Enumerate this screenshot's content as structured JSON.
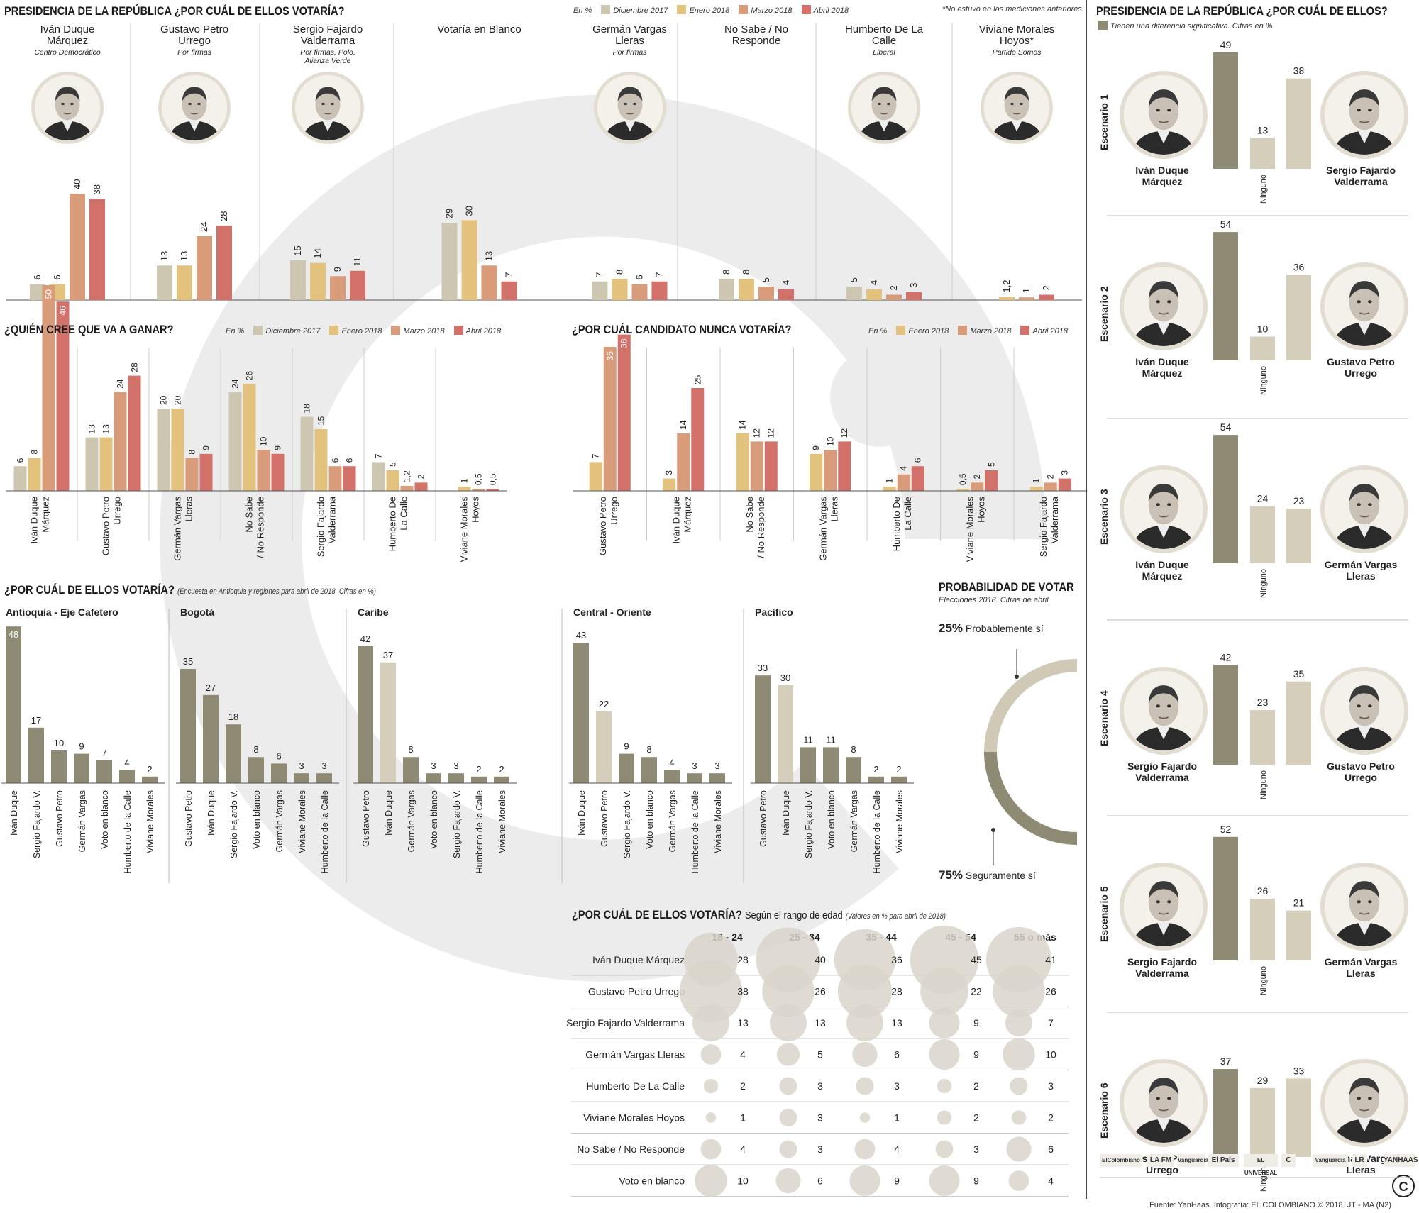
{
  "colors": {
    "dic2017": "#cdc6b0",
    "ene2018": "#e3c27d",
    "mar2018": "#d99c7a",
    "abr2018": "#d2706a",
    "dark": "#8f8a74",
    "light": "#d4ceba"
  },
  "main": {
    "title": "PRESIDENCIA DE LA REPÚBLICA ¿POR CUÁL DE ELLOS VOTARÍA?",
    "legend_unit": "En %",
    "legend": [
      "Diciembre 2017",
      "Enero 2018",
      "Marzo 2018",
      "Abril 2018"
    ],
    "note": "*No estuvo en las mediciones anteriores",
    "candidates": [
      {
        "name": "Iván Duque Márquez",
        "party": "Centro Democrático",
        "face": "duque-photo"
      },
      {
        "name": "Gustavo Petro Urrego",
        "party": "Por firmas",
        "face": "petro-photo"
      },
      {
        "name": "Sergio Fajardo Valderrama",
        "party": "Por firmas, Polo, Alianza Verde",
        "face": "fajardo-photo"
      },
      {
        "name": "Votaría en Blanco",
        "party": "",
        "face": ""
      },
      {
        "name": "Germán Vargas Lleras",
        "party": "Por firmas",
        "face": "vargas-photo"
      },
      {
        "name": "No Sabe / No Responde",
        "party": "",
        "face": ""
      },
      {
        "name": "Humberto De La Calle",
        "party": "Liberal",
        "face": "delacalle-photo"
      },
      {
        "name": "Viviane Morales Hoyos*",
        "party": "Partido Somos",
        "face": "morales-photo"
      }
    ]
  },
  "quien": {
    "title": "¿QUIÉN CREE QUE VA A GANAR?",
    "legend_unit": "En %",
    "legend": [
      "Diciembre 2017",
      "Enero 2018",
      "Marzo 2018",
      "Abril 2018"
    ]
  },
  "nunca": {
    "title": "¿POR CUÁL CANDIDATO NUNCA VOTARÍA?",
    "legend_unit": "En %",
    "legend": [
      "Enero 2018",
      "Marzo 2018",
      "Abril 2018"
    ]
  },
  "regiones": {
    "title": "¿POR CUÁL DE ELLOS VOTARÍA?",
    "note": "(Encuesta en Antioquia y regiones para abril de 2018. Cifras en %)"
  },
  "prob": {
    "title": "PROBABILIDAD DE VOTAR",
    "subtitle": "Elecciones 2018. Cifras de abril",
    "a_pct": "25%",
    "a_label": "Probablemente sí",
    "b_pct": "75%",
    "b_label": "Seguramente sí"
  },
  "edad": {
    "title": "¿POR CUÁL DE ELLOS VOTARÍA?",
    "subtitle": "Según el rango de edad",
    "note": "(Valores en % para abril de 2018)"
  },
  "side": {
    "title": "PRESIDENCIA DE LA REPÚBLICA ¿POR CUÁL DE ELLOS?",
    "legend": "Tienen una diferencia significativa. Cifras en %",
    "ninguno": "Ninguno",
    "escenarios": [
      {
        "label": "Escenario 1",
        "left": "Iván Duque Márquez",
        "right": "Sergio Fajardo Valderrama",
        "lface": "duque-photo",
        "rface": "fajardo-photo"
      },
      {
        "label": "Escenario 2",
        "left": "Iván Duque Márquez",
        "right": "Gustavo Petro Urrego",
        "lface": "duque-photo",
        "rface": "petro-photo"
      },
      {
        "label": "Escenario 3",
        "left": "Iván Duque Márquez",
        "right": "Germán Vargas Lleras",
        "lface": "duque-photo",
        "rface": "vargas-photo"
      },
      {
        "label": "Escenario 4",
        "left": "Sergio Fajardo Valderrama",
        "right": "Gustavo Petro Urrego",
        "lface": "fajardo-photo",
        "rface": "petro-photo"
      },
      {
        "label": "Escenario 5",
        "left": "Sergio Fajardo Valderrama",
        "right": "Germán Vargas Lleras",
        "lface": "fajardo-photo",
        "rface": "vargas-photo"
      },
      {
        "label": "Escenario 6",
        "left": "Gustavo Petro Urrego",
        "right": "Germán Vargas Lleras",
        "lface": "petro-photo",
        "rface": "vargas-photo"
      }
    ],
    "logos": [
      "ElColombiano",
      "LA FM",
      "Vanguardia",
      "El País",
      "EL UNIVERSAL",
      "C",
      "Vanguardia",
      "LR",
      "YANHAAS"
    ]
  },
  "source": "Fuente: YanHaas. Infografía: EL COLOMBIANO © 2018. JT - MA (N2)",
  "chart_data": [
    {
      "id": "main",
      "type": "bar",
      "title": "PRESIDENCIA DE LA REPÚBLICA ¿POR CUÁL DE ELLOS VOTARÍA?",
      "categories": [
        "Iván Duque Márquez",
        "Gustavo Petro Urrego",
        "Sergio Fajardo Valderrama",
        "Votaría en Blanco",
        "Germán Vargas Lleras",
        "No Sabe / No Responde",
        "Humberto De La Calle",
        "Viviane Morales Hoyos*"
      ],
      "series": [
        {
          "name": "Diciembre 2017",
          "values": [
            6,
            13,
            15,
            29,
            7,
            8,
            5,
            null
          ]
        },
        {
          "name": "Enero 2018",
          "values": [
            6,
            13,
            14,
            30,
            8,
            8,
            4,
            1.2
          ]
        },
        {
          "name": "Marzo 2018",
          "values": [
            40,
            24,
            9,
            13,
            6,
            5,
            2,
            1
          ]
        },
        {
          "name": "Abril 2018",
          "values": [
            38,
            28,
            11,
            7,
            7,
            4,
            3,
            2
          ]
        }
      ],
      "labels": [
        [
          "6",
          "6",
          "40",
          "38"
        ],
        [
          "13",
          "13",
          "24",
          "28"
        ],
        [
          "15",
          "14",
          "9",
          "11"
        ],
        [
          "29",
          "30",
          "13",
          "7"
        ],
        [
          "7",
          "8",
          "6",
          "7"
        ],
        [
          "8",
          "8",
          "5",
          "4"
        ],
        [
          "5",
          "4",
          "2",
          "3"
        ],
        [
          "",
          "1,2",
          "1",
          "2"
        ]
      ]
    },
    {
      "id": "quien",
      "type": "bar",
      "title": "¿QUIÉN CREE QUE VA A GANAR?",
      "categories": [
        "Iván Duque Márquez",
        "Gustavo Petro Urrego",
        "Germán Vargas Lleras",
        "No Sabe / No Responde",
        "Sergio Fajardo Valderrama",
        "Humberto De La Calle",
        "Viviane Morales Hoyos"
      ],
      "series": [
        {
          "name": "Diciembre 2017",
          "values": [
            6,
            13,
            20,
            24,
            18,
            7,
            null
          ]
        },
        {
          "name": "Enero 2018",
          "values": [
            8,
            13,
            20,
            26,
            15,
            5,
            1
          ]
        },
        {
          "name": "Marzo 2018",
          "values": [
            50,
            24,
            8,
            10,
            6,
            1.2,
            0.5
          ]
        },
        {
          "name": "Abril 2018",
          "values": [
            46,
            28,
            9,
            9,
            6,
            2,
            0.5
          ]
        }
      ],
      "labels": [
        [
          "6",
          "8",
          "50",
          "46"
        ],
        [
          "13",
          "13",
          "24",
          "28"
        ],
        [
          "20",
          "20",
          "8",
          "9"
        ],
        [
          "24",
          "26",
          "10",
          "9"
        ],
        [
          "18",
          "15",
          "6",
          "6"
        ],
        [
          "7",
          "5",
          "1,2",
          "2"
        ],
        [
          "",
          "1",
          "0,5",
          "0,5"
        ]
      ]
    },
    {
      "id": "nunca",
      "type": "bar",
      "title": "¿POR CUÁL CANDIDATO NUNCA VOTARÍA?",
      "categories": [
        "Gustavo Petro Urrego",
        "Iván Duque Márquez",
        "No Sabe / No Responde",
        "Germán Vargas Lleras",
        "Humberto De La Calle",
        "Viviane Morales Hoyos",
        "Sergio Fajardo Valderrama"
      ],
      "series": [
        {
          "name": "Enero 2018",
          "values": [
            7,
            3,
            14,
            9,
            1,
            0.5,
            1
          ]
        },
        {
          "name": "Marzo 2018",
          "values": [
            35,
            14,
            12,
            10,
            4,
            2,
            2
          ]
        },
        {
          "name": "Abril 2018",
          "values": [
            38,
            25,
            12,
            12,
            6,
            5,
            3
          ]
        }
      ],
      "labels": [
        [
          "7",
          "35",
          "38"
        ],
        [
          "3",
          "14",
          "25"
        ],
        [
          "14",
          "12",
          "12"
        ],
        [
          "9",
          "10",
          "12"
        ],
        [
          "1",
          "4",
          "6"
        ],
        [
          "0,5",
          "2",
          "5"
        ],
        [
          "1",
          "2",
          "3"
        ]
      ]
    },
    {
      "id": "regiones",
      "type": "bar",
      "title": "¿POR CUÁL DE ELLOS VOTARÍA?",
      "groups": [
        {
          "name": "Antioquia - Eje Cafetero",
          "categories": [
            "Iván Duque",
            "Sergio Fajardo V.",
            "Gustavo Petro",
            "Germán Vargas",
            "Voto en blanco",
            "Humberto de la Calle",
            "Viviane Morales"
          ],
          "values": [
            48,
            17,
            10,
            9,
            7,
            4,
            2
          ]
        },
        {
          "name": "Bogotá",
          "categories": [
            "Gustavo Petro",
            "Iván Duque",
            "Sergio Fajardo V.",
            "Voto en blanco",
            "Germán Vargas",
            "Viviane Morales",
            "Humberto de la Calle"
          ],
          "values": [
            35,
            27,
            18,
            8,
            6,
            3,
            3
          ]
        },
        {
          "name": "Caribe",
          "categories": [
            "Gustavo Petro",
            "Iván Duque",
            "Germán Vargas",
            "Voto en blanco",
            "Sergio Fajardo V.",
            "Humberto de la Calle",
            "Viviane Morales"
          ],
          "values": [
            42,
            37,
            8,
            3,
            3,
            2,
            2
          ]
        },
        {
          "name": "Central - Oriente",
          "categories": [
            "Iván Duque",
            "Gustavo Petro",
            "Sergio Fajardo V.",
            "Voto en blanco",
            "Germán Vargas",
            "Humberto de la Calle",
            "Viviane Morales"
          ],
          "values": [
            43,
            22,
            9,
            8,
            4,
            3,
            3
          ]
        },
        {
          "name": "Pacífico",
          "categories": [
            "Gustavo Petro",
            "Iván Duque",
            "Sergio Fajardo V.",
            "Voto en blanco",
            "Germán Vargas",
            "Humberto de la Calle",
            "Viviane Morales"
          ],
          "values": [
            33,
            30,
            11,
            11,
            8,
            2,
            2
          ]
        }
      ]
    },
    {
      "id": "probabilidad",
      "type": "pie",
      "title": "PROBABILIDAD DE VOTAR",
      "categories": [
        "Probablemente sí",
        "Seguramente sí"
      ],
      "values": [
        25,
        75
      ]
    },
    {
      "id": "edad",
      "type": "table",
      "title": "¿POR CUÁL DE ELLOS VOTARÍA?",
      "columns": [
        "18 - 24",
        "25 - 34",
        "35 - 44",
        "45 - 54",
        "55 o más"
      ],
      "rows": [
        {
          "name": "Iván Duque Márquez",
          "values": [
            28,
            40,
            36,
            45,
            41
          ]
        },
        {
          "name": "Gustavo Petro Urrego",
          "values": [
            38,
            26,
            28,
            22,
            26
          ]
        },
        {
          "name": "Sergio Fajardo Valderrama",
          "values": [
            13,
            13,
            13,
            9,
            7
          ]
        },
        {
          "name": "Germán Vargas Lleras",
          "values": [
            4,
            5,
            6,
            9,
            10
          ]
        },
        {
          "name": "Humberto De La Calle",
          "values": [
            2,
            3,
            3,
            2,
            3
          ]
        },
        {
          "name": "Viviane Morales Hoyos",
          "values": [
            1,
            3,
            1,
            2,
            2
          ]
        },
        {
          "name": "No Sabe / No Responde",
          "values": [
            4,
            3,
            4,
            3,
            6
          ]
        },
        {
          "name": "Voto en blanco",
          "values": [
            10,
            6,
            9,
            9,
            4
          ]
        }
      ]
    },
    {
      "id": "escenarios",
      "type": "bar",
      "title": "PRESIDENCIA DE LA REPÚBLICA ¿POR CUÁL DE ELLOS?",
      "categories": [
        "Candidato A",
        "Ninguno",
        "Candidato B"
      ],
      "series": [
        {
          "name": "Escenario 1",
          "values": [
            49,
            13,
            38
          ],
          "significant": [
            true,
            false,
            false
          ]
        },
        {
          "name": "Escenario 2",
          "values": [
            54,
            10,
            36
          ],
          "significant": [
            true,
            false,
            false
          ]
        },
        {
          "name": "Escenario 3",
          "values": [
            54,
            24,
            23
          ],
          "significant": [
            true,
            false,
            false
          ]
        },
        {
          "name": "Escenario 4",
          "values": [
            42,
            23,
            35
          ],
          "significant": [
            true,
            false,
            false
          ]
        },
        {
          "name": "Escenario 5",
          "values": [
            52,
            26,
            21
          ],
          "significant": [
            true,
            false,
            false
          ]
        },
        {
          "name": "Escenario 6",
          "values": [
            37,
            29,
            33
          ],
          "significant": [
            true,
            false,
            false
          ]
        }
      ]
    }
  ]
}
